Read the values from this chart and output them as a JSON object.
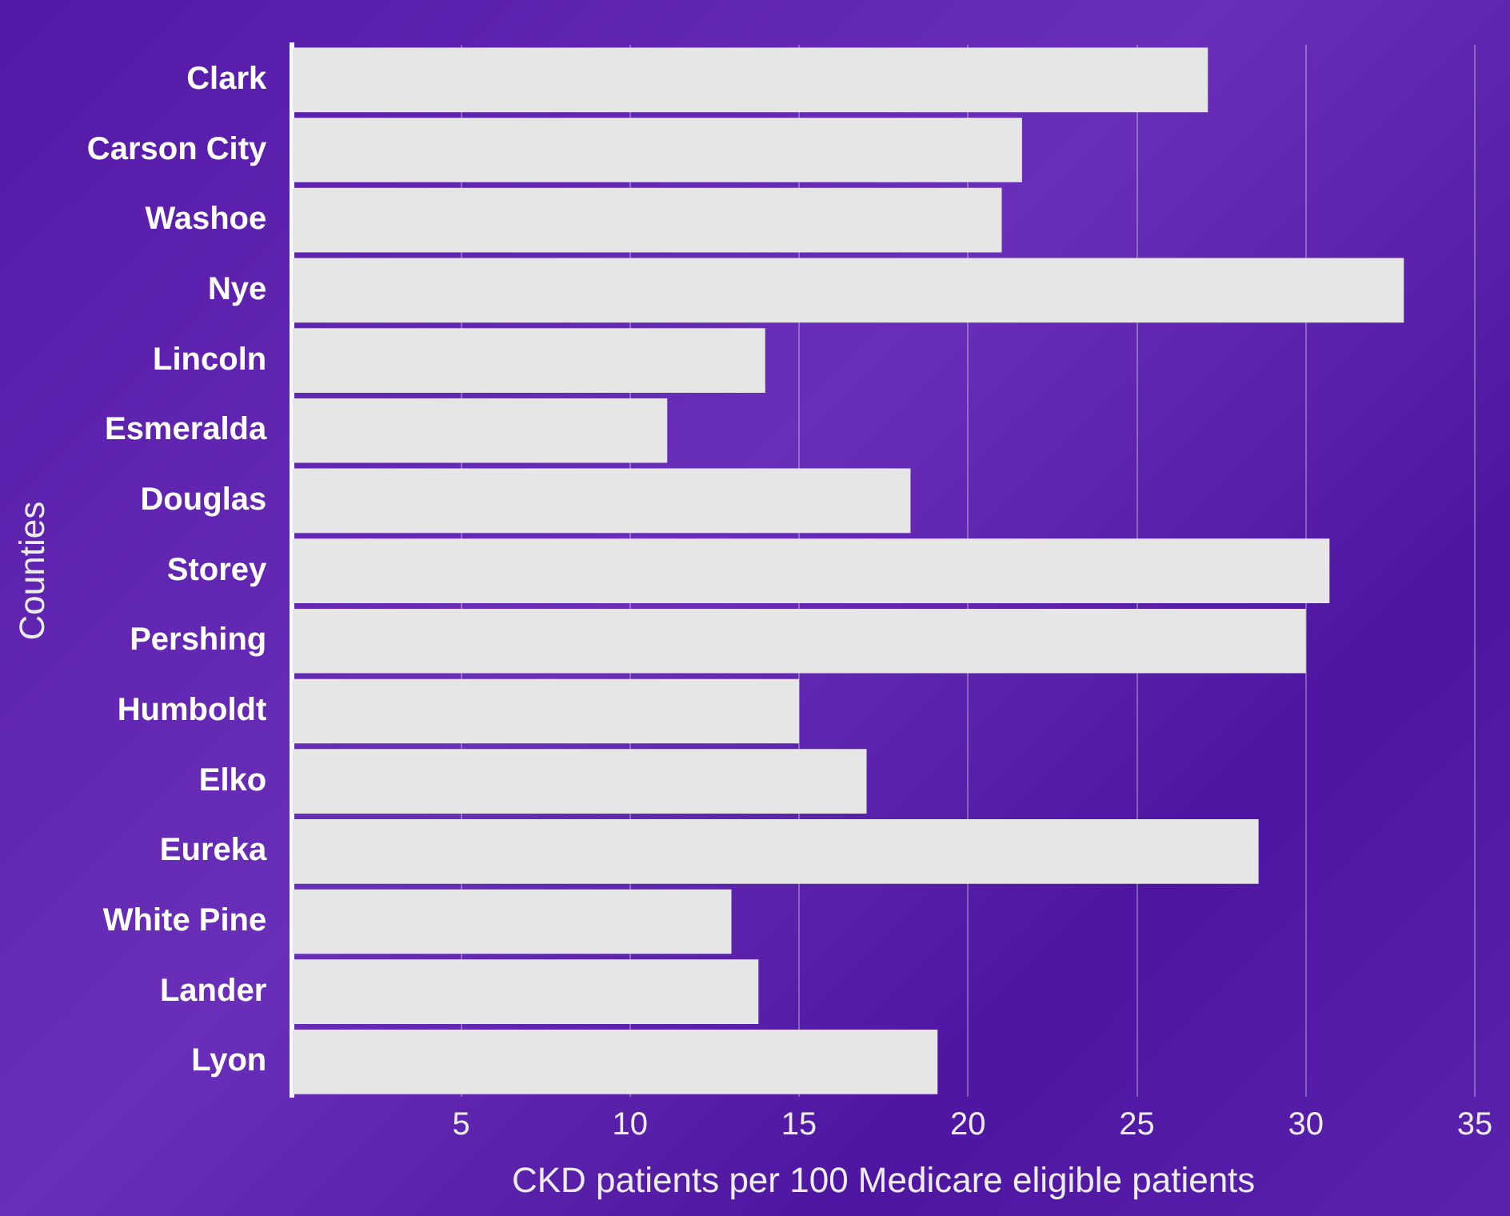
{
  "chart_data": {
    "type": "bar",
    "orientation": "horizontal",
    "xlabel": "CKD patients per 100 Medicare eligible patients",
    "ylabel": "Counties",
    "categories": [
      "Clark",
      "Carson City",
      "Washoe",
      "Nye",
      "Lincoln",
      "Esmeralda",
      "Douglas",
      "Storey",
      "Pershing",
      "Humboldt",
      "Elko",
      "Eureka",
      "White Pine",
      "Lander",
      "Lyon"
    ],
    "values": [
      27.1,
      21.6,
      21.0,
      32.9,
      14.0,
      11.1,
      18.3,
      30.7,
      30.0,
      15.0,
      17.0,
      28.6,
      13.0,
      13.8,
      19.1
    ],
    "color": "#e6e6e6",
    "xlim": [
      0,
      35
    ],
    "xticks": [
      5,
      10,
      15,
      20,
      25,
      30,
      35
    ],
    "grid": "x",
    "legend": false
  }
}
